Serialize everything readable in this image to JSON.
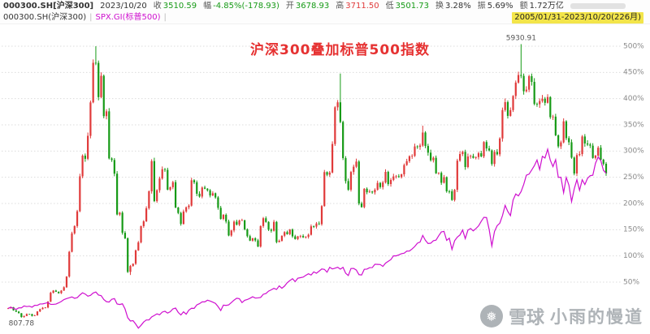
{
  "header": {
    "row1": {
      "symbol": "000300.SH[沪深300]",
      "date": "2023/10/20",
      "fields": [
        {
          "label": "收",
          "value": "3510.59",
          "color": "down"
        },
        {
          "label": "幅",
          "value": "-4.85%(-178.93)",
          "color": "down"
        },
        {
          "label": "开",
          "value": "3678.93",
          "color": "down"
        },
        {
          "label": "高",
          "value": "3711.50",
          "color": "up"
        },
        {
          "label": "低",
          "value": "3501.73",
          "color": "down"
        },
        {
          "label": "换",
          "value": "3.28%",
          "color": "neutral"
        },
        {
          "label": "振",
          "value": "5.69%",
          "color": "neutral"
        },
        {
          "label": "额",
          "value": "1.72万亿",
          "color": "neutral"
        }
      ]
    },
    "row2": {
      "series1": "000300.SH(沪深300)",
      "series2": "SPX.GI(标普500)",
      "separator": "|",
      "range": "2005/01/31-2023/10/20(226月)"
    }
  },
  "overlay": {
    "title": "沪深300叠加标普500指数"
  },
  "watermark": {
    "brand": "雪球",
    "name": "小雨的慢道",
    "logo": "snowball-icon"
  },
  "colors": {
    "up": "#e03a3a",
    "down": "#169a16",
    "spx_line": "#cf10cf",
    "title": "#e63232",
    "range_highlight": "#f3e54a",
    "grid": "#dcdcdc",
    "axis_text": "#8a8a8a",
    "marker_text": "#555555"
  },
  "chart_data": {
    "type": "candlestick+line",
    "title": "沪深300叠加标普500指数",
    "x_range": [
      "2005/01",
      "2023/10"
    ],
    "period": "monthly",
    "months": 226,
    "y_axis": {
      "unit": "%",
      "ticks": [
        500,
        450,
        400,
        350,
        300,
        250,
        200,
        150,
        100,
        50
      ],
      "ylim": [
        -49,
        545
      ]
    },
    "markers": [
      {
        "month": 193,
        "value": 5930.91,
        "kind": "high",
        "label": "5930.91"
      },
      {
        "month": 5,
        "value": 807.78,
        "kind": "low",
        "label": "807.78"
      }
    ],
    "extremes": [
      {
        "month": 5,
        "low": 807.78
      },
      {
        "month": 33,
        "high": 5891.72
      },
      {
        "month": 46,
        "low": 1606.73
      },
      {
        "month": 55,
        "high": 3803.06
      },
      {
        "month": 125,
        "high": 5380.43
      },
      {
        "month": 156,
        "high": 4403.34
      },
      {
        "month": 193,
        "high": 5930.91
      }
    ],
    "series": [
      {
        "name": "000300.SH(沪深300)",
        "type": "candlestick",
        "base": 982,
        "closes": [
          982,
          1004,
          944,
          921,
          890,
          818,
          839,
          875,
          873,
          840,
          851,
          924,
          966,
          992,
          998,
          1107,
          1274,
          1314,
          1293,
          1266,
          1314,
          1377,
          1577,
          2041,
          2386,
          2523,
          2800,
          3455,
          3842,
          3783,
          4213,
          4840,
          5581,
          5580,
          4938,
          5338,
          4582,
          4672,
          3790,
          3761,
          3504,
          2740,
          2773,
          2397,
          2294,
          1664,
          1775,
          1817,
          2067,
          2218,
          2521,
          2612,
          2857,
          3174,
          3740,
          2990,
          3195,
          3414,
          3587,
          3576,
          3204,
          3251,
          3345,
          2870,
          2768,
          2563,
          2796,
          2875,
          2905,
          3381,
          3343,
          3129,
          3076,
          3244,
          3223,
          3193,
          3096,
          3138,
          3060,
          2865,
          2657,
          2734,
          2608,
          2346,
          2441,
          2605,
          2550,
          2627,
          2632,
          2461,
          2334,
          2250,
          2294,
          2255,
          2139,
          2523,
          2669,
          2600,
          2455,
          2435,
          2601,
          2223,
          2247,
          2342,
          2410,
          2371,
          2458,
          2331,
          2280,
          2329,
          2337,
          2312,
          2321,
          2360,
          2518,
          2513,
          2571,
          2559,
          2897,
          3534,
          3485,
          3526,
          4060,
          4748,
          4841,
          4473,
          3796,
          3366,
          3203,
          3536,
          3635,
          3731,
          2946,
          2878,
          3222,
          3157,
          3169,
          3154,
          3203,
          3331,
          3253,
          3340,
          3538,
          3310,
          3388,
          3452,
          3456,
          3440,
          3492,
          3666,
          3738,
          3831,
          3837,
          4015,
          4006,
          4031,
          4275,
          4023,
          3898,
          3756,
          3802,
          3511,
          3519,
          3334,
          3439,
          3174,
          3173,
          3011,
          3202,
          3748,
          3872,
          3913,
          3629,
          3826,
          3835,
          3800,
          3815,
          3887,
          3828,
          4097,
          3977,
          3940,
          3686,
          3912,
          3867,
          4164,
          4696,
          4844,
          4587,
          4695,
          4960,
          5211,
          5352,
          5336,
          5048,
          5078,
          5331,
          5224,
          4811,
          4805,
          4866,
          4909,
          4832,
          4940,
          4563,
          4573,
          4223,
          4016,
          4091,
          4485,
          4170,
          4093,
          3805,
          3508,
          3853,
          3872,
          4201,
          4070,
          4051,
          4029,
          3799,
          3842,
          3991,
          3766,
          3690,
          3510.59
        ]
      },
      {
        "name": "SPX.GI(标普500)",
        "type": "line",
        "base": 1181,
        "closes": [
          1181,
          1204,
          1181,
          1157,
          1192,
          1191,
          1234,
          1220,
          1229,
          1207,
          1249,
          1248,
          1280,
          1281,
          1295,
          1311,
          1270,
          1270,
          1277,
          1304,
          1336,
          1378,
          1401,
          1418,
          1438,
          1407,
          1421,
          1482,
          1531,
          1503,
          1455,
          1474,
          1527,
          1549,
          1481,
          1468,
          1379,
          1331,
          1323,
          1386,
          1400,
          1280,
          1267,
          1283,
          1166,
          969,
          896,
          903,
          826,
          735,
          798,
          873,
          919,
          919,
          987,
          1021,
          1057,
          1036,
          1096,
          1115,
          1074,
          1104,
          1169,
          1187,
          1089,
          1031,
          1102,
          1049,
          1141,
          1183,
          1181,
          1258,
          1286,
          1327,
          1326,
          1364,
          1345,
          1321,
          1292,
          1219,
          1131,
          1253,
          1247,
          1258,
          1312,
          1366,
          1408,
          1398,
          1310,
          1362,
          1379,
          1407,
          1441,
          1412,
          1416,
          1426,
          1498,
          1515,
          1569,
          1598,
          1631,
          1606,
          1686,
          1633,
          1682,
          1757,
          1806,
          1848,
          1783,
          1859,
          1872,
          1884,
          1924,
          1960,
          1931,
          2003,
          1972,
          2018,
          2068,
          2059,
          1995,
          2105,
          2068,
          2086,
          2107,
          2063,
          2104,
          1972,
          1920,
          2079,
          2080,
          2044,
          1940,
          1932,
          2060,
          2065,
          2097,
          2099,
          2174,
          2171,
          2168,
          2126,
          2199,
          2239,
          2279,
          2364,
          2363,
          2384,
          2412,
          2423,
          2470,
          2472,
          2519,
          2575,
          2648,
          2674,
          2824,
          2714,
          2641,
          2648,
          2705,
          2718,
          2816,
          2902,
          2914,
          2712,
          2760,
          2507,
          2704,
          2784,
          2834,
          2946,
          2752,
          2942,
          2980,
          2926,
          2977,
          3038,
          3141,
          3231,
          3226,
          2954,
          2585,
          2912,
          3044,
          3100,
          3271,
          3500,
          3363,
          3270,
          3622,
          3756,
          3714,
          3811,
          3973,
          4181,
          4204,
          4298,
          4395,
          4523,
          4308,
          4605,
          4567,
          4766,
          4516,
          4374,
          4530,
          4132,
          4132,
          3785,
          4130,
          3955,
          3586,
          3872,
          4080,
          3840,
          4077,
          3970,
          4109,
          4169,
          4180,
          4450,
          4589,
          4508,
          4288,
          4224
        ]
      }
    ]
  }
}
